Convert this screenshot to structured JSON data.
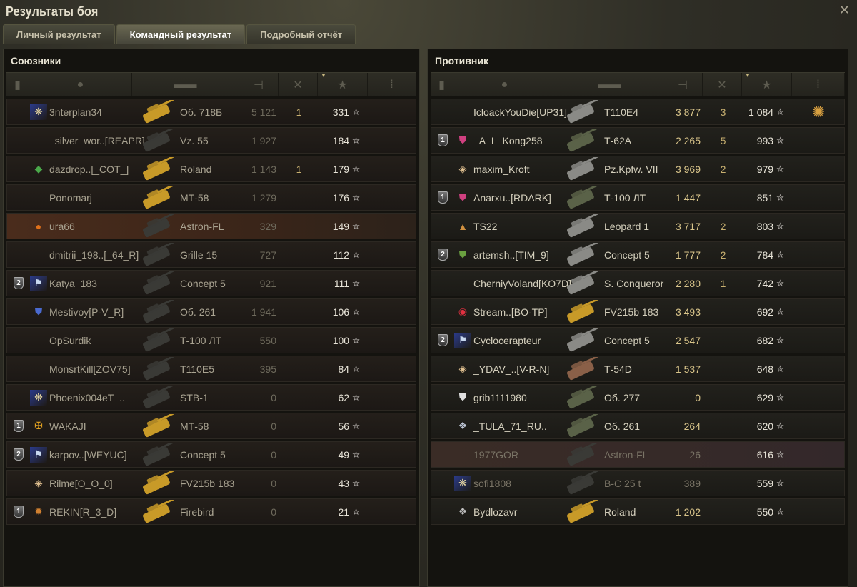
{
  "window": {
    "title": "Результаты боя",
    "close_icon": "close-icon"
  },
  "tabs": [
    {
      "label": "Личный результат",
      "active": false
    },
    {
      "label": "Командный результат",
      "active": true
    },
    {
      "label": "Подробный отчёт",
      "active": false
    }
  ],
  "columns": {
    "squad": "squad-icon",
    "player": "player-icon",
    "tank": "tank-icon",
    "damage": "damage-icon",
    "kills": "kills-icon",
    "xp": "star-icon",
    "medals": "medal-icon",
    "sorted_by": "xp"
  },
  "colors": {
    "premium_tank": "#c89a28",
    "enemy_damage": "#d8c48a",
    "own_row": "#4a2c1c"
  },
  "allies": {
    "title": "Союзники",
    "rows": [
      {
        "squad": "",
        "badge": "snowflake",
        "player": "3nterplan34",
        "tank": "Об. 718Б",
        "tank_color": "gold",
        "damage": "5 121",
        "kills": "1",
        "xp": "331"
      },
      {
        "squad": "",
        "badge": "",
        "player": "_silver_wor..[REAPR]",
        "tank": "Vz. 55",
        "tank_color": "dark",
        "damage": "1 927",
        "kills": "",
        "xp": "184"
      },
      {
        "squad": "",
        "badge": "diamond-13",
        "player": "dazdrop..[_COT_]",
        "tank": "Roland",
        "tank_color": "gold",
        "damage": "1 143",
        "kills": "1",
        "xp": "179"
      },
      {
        "squad": "",
        "badge": "",
        "player": "Ponomarj",
        "tank": "МТ-58",
        "tank_color": "gold",
        "damage": "1 279",
        "kills": "",
        "xp": "176"
      },
      {
        "squad": "",
        "badge": "orange-circle",
        "player": "ura66",
        "tank": "Astron-FL",
        "tank_color": "dark",
        "damage": "329",
        "kills": "",
        "xp": "149",
        "highlight": true
      },
      {
        "squad": "",
        "badge": "",
        "player": "dmitrii_198..[_64_R]",
        "tank": "Grille 15",
        "tank_color": "dark",
        "damage": "727",
        "kills": "",
        "xp": "112"
      },
      {
        "squad": "2",
        "badge": "blue-flag",
        "player": "Katya_183",
        "tank": "Concept 5",
        "tank_color": "dark",
        "damage": "921",
        "kills": "",
        "xp": "111"
      },
      {
        "squad": "",
        "badge": "yusha",
        "player": "Mestivoy[P-V_R]",
        "tank": "Об. 261",
        "tank_color": "dark",
        "damage": "1 941",
        "kills": "",
        "xp": "106"
      },
      {
        "squad": "",
        "badge": "",
        "player": "OpSurdik",
        "tank": "Т-100 ЛТ",
        "tank_color": "dark",
        "damage": "550",
        "kills": "",
        "xp": "100"
      },
      {
        "squad": "",
        "badge": "",
        "player": "MonsrtKill[ZOV75]",
        "tank": "T110E5",
        "tank_color": "dark",
        "damage": "395",
        "kills": "",
        "xp": "84"
      },
      {
        "squad": "",
        "badge": "snowflake",
        "player": "Phoenix004eT_..",
        "tank": "STB-1",
        "tank_color": "dark",
        "damage": "0",
        "kills": "",
        "xp": "62"
      },
      {
        "squad": "1",
        "badge": "gold-emblem",
        "player": "WAKAJI",
        "tank": "МТ-58",
        "tank_color": "gold",
        "damage": "0",
        "kills": "",
        "xp": "56"
      },
      {
        "squad": "2",
        "badge": "blue-flag",
        "player": "karpov..[WEYUC]",
        "tank": "Concept 5",
        "tank_color": "dark",
        "damage": "0",
        "kills": "",
        "xp": "49"
      },
      {
        "squad": "",
        "badge": "diamond-1",
        "player": "Rilme[O_O_0]",
        "tank": "FV215b 183",
        "tank_color": "gold",
        "damage": "0",
        "kills": "",
        "xp": "43"
      },
      {
        "squad": "1",
        "badge": "lion",
        "player": "REKIN[R_3_D]",
        "tank": "Firebird",
        "tank_color": "gold",
        "damage": "0",
        "kills": "",
        "xp": "21"
      }
    ]
  },
  "enemies": {
    "title": "Противник",
    "rows": [
      {
        "squad": "",
        "badge": "",
        "player": "IcloackYouDie[UP31]",
        "tank": "T110E4",
        "tank_color": "light",
        "damage": "3 877",
        "kills": "3",
        "xp": "1 084",
        "medal": "ace-medal"
      },
      {
        "squad": "1",
        "badge": "nerd",
        "player": "_A_L_Kong258",
        "tank": "Т-62А",
        "tank_color": "green",
        "damage": "2 265",
        "kills": "5",
        "xp": "993"
      },
      {
        "squad": "",
        "badge": "diamond-1",
        "player": "maxim_Kroft",
        "tank": "Pz.Kpfw. VII",
        "tank_color": "light",
        "damage": "3 969",
        "kills": "2",
        "xp": "979"
      },
      {
        "squad": "1",
        "badge": "nerd",
        "player": "Anarxu..[RDARK]",
        "tank": "Т-100 ЛТ",
        "tank_color": "green",
        "damage": "1 447",
        "kills": "",
        "xp": "851"
      },
      {
        "squad": "",
        "badge": "helmet",
        "player": "TS22",
        "tank": "Leopard 1",
        "tank_color": "light",
        "damage": "3 717",
        "kills": "2",
        "xp": "803"
      },
      {
        "squad": "2",
        "badge": "green-shield",
        "player": "artemsh..[TIM_9]",
        "tank": "Concept 5",
        "tank_color": "light",
        "damage": "1 777",
        "kills": "2",
        "xp": "784"
      },
      {
        "squad": "",
        "badge": "",
        "player": "CherniyVoland[KO7D]",
        "tank": "S. Conqueror",
        "tank_color": "light",
        "damage": "2 280",
        "kills": "1",
        "xp": "742"
      },
      {
        "squad": "",
        "badge": "red-circle",
        "player": "Stream..[BO-TP]",
        "tank": "FV215b 183",
        "tank_color": "gold",
        "damage": "3 493",
        "kills": "",
        "xp": "692"
      },
      {
        "squad": "2",
        "badge": "blue-flag",
        "player": "Cyclocerapteur",
        "tank": "Concept 5",
        "tank_color": "light",
        "damage": "2 547",
        "kills": "",
        "xp": "682"
      },
      {
        "squad": "",
        "badge": "diamond-1",
        "player": "_YDAV_..[V-R-N]",
        "tank": "Т-54D",
        "tank_color": "brown",
        "damage": "1 537",
        "kills": "",
        "xp": "648"
      },
      {
        "squad": "",
        "badge": "red-15",
        "player": "grib1111980",
        "tank": "Об. 277",
        "tank_color": "green",
        "damage": "0",
        "kills": "",
        "xp": "629"
      },
      {
        "squad": "",
        "badge": "bear",
        "player": "_TULA_71_RU..",
        "tank": "Об. 261",
        "tank_color": "green",
        "damage": "264",
        "kills": "",
        "xp": "620"
      },
      {
        "squad": "",
        "badge": "",
        "player": "1977GOR",
        "tank": "Astron-FL",
        "tank_color": "dark",
        "damage": "26",
        "kills": "",
        "xp": "616",
        "hover": true,
        "dim": true
      },
      {
        "squad": "",
        "badge": "snowflake",
        "player": "sofi1808",
        "tank": "В-С 25 t",
        "tank_color": "dark",
        "damage": "389",
        "kills": "",
        "xp": "559",
        "dim": true
      },
      {
        "squad": "",
        "badge": "wolf",
        "player": "Bydlozavr",
        "tank": "Roland",
        "tank_color": "gold",
        "damage": "1 202",
        "kills": "",
        "xp": "550"
      }
    ]
  }
}
